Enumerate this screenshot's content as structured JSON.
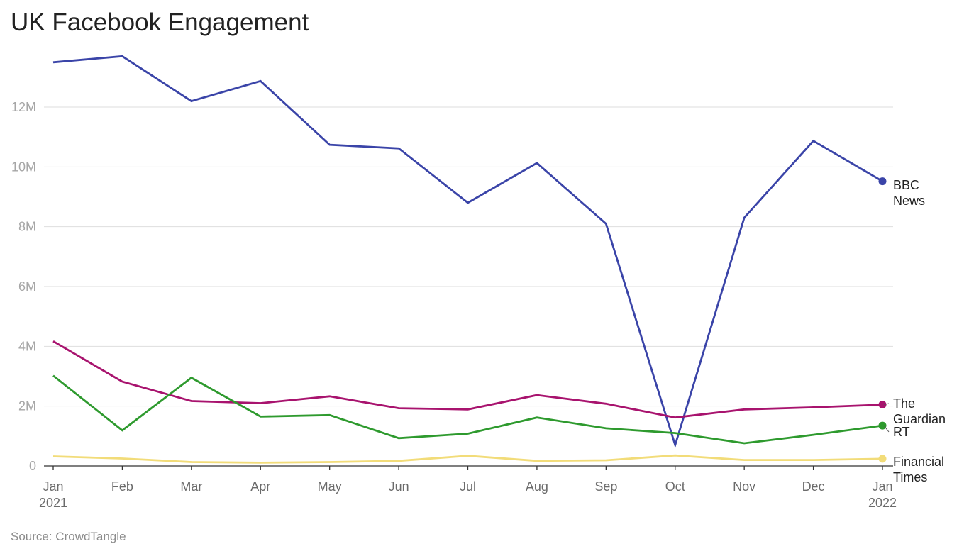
{
  "header": {
    "title": "UK Facebook Engagement"
  },
  "footer": {
    "source": "Source: CrowdTangle"
  },
  "chart_data": {
    "type": "line",
    "title": "UK Facebook Engagement",
    "xlabel": "",
    "ylabel": "",
    "x": [
      "Jan 2021",
      "Feb 2021",
      "Mar 2021",
      "Apr 2021",
      "May 2021",
      "Jun 2021",
      "Jul 2021",
      "Aug 2021",
      "Sep 2021",
      "Oct 2021",
      "Nov 2021",
      "Dec 2021",
      "Jan 2022"
    ],
    "x_tick_labels": [
      [
        "Jan",
        "2021"
      ],
      [
        "Feb"
      ],
      [
        "Mar"
      ],
      [
        "Apr"
      ],
      [
        "May"
      ],
      [
        "Jun"
      ],
      [
        "Jul"
      ],
      [
        "Aug"
      ],
      [
        "Sep"
      ],
      [
        "Oct"
      ],
      [
        "Nov"
      ],
      [
        "Dec"
      ],
      [
        "Jan",
        "2022"
      ]
    ],
    "ylim": [
      0,
      13800000
    ],
    "y_ticks": [
      {
        "value": 0,
        "label": "0"
      },
      {
        "value": 2000000,
        "label": "2M"
      },
      {
        "value": 4000000,
        "label": "4M"
      },
      {
        "value": 6000000,
        "label": "6M"
      },
      {
        "value": 8000000,
        "label": "8M"
      },
      {
        "value": 10000000,
        "label": "10M"
      },
      {
        "value": 12000000,
        "label": "12M"
      }
    ],
    "grid": true,
    "legend": "direct labels at right end of lines",
    "series": [
      {
        "name": "BBC News",
        "label_lines": [
          "BBC",
          "News"
        ],
        "color": "#3a44a8",
        "values": [
          13500000,
          13700000,
          12200000,
          12870000,
          10740000,
          10620000,
          8800000,
          10130000,
          8100000,
          700000,
          8300000,
          10870000,
          9520000
        ]
      },
      {
        "name": "The Guardian",
        "label_lines": [
          "The",
          "Guardian"
        ],
        "color": "#a8136e",
        "values": [
          4170000,
          2820000,
          2170000,
          2100000,
          2330000,
          1930000,
          1890000,
          2370000,
          2080000,
          1620000,
          1890000,
          1960000,
          2050000
        ]
      },
      {
        "name": "RT",
        "label_lines": [
          "RT"
        ],
        "color": "#2e9a2e",
        "values": [
          3020000,
          1190000,
          2950000,
          1650000,
          1700000,
          930000,
          1080000,
          1620000,
          1260000,
          1100000,
          760000,
          1040000,
          1350000
        ]
      },
      {
        "name": "Financial Times",
        "label_lines": [
          "Financial",
          "Times"
        ],
        "color": "#f2dc79",
        "values": [
          320000,
          250000,
          130000,
          110000,
          130000,
          170000,
          340000,
          170000,
          190000,
          350000,
          200000,
          200000,
          240000
        ]
      }
    ]
  }
}
